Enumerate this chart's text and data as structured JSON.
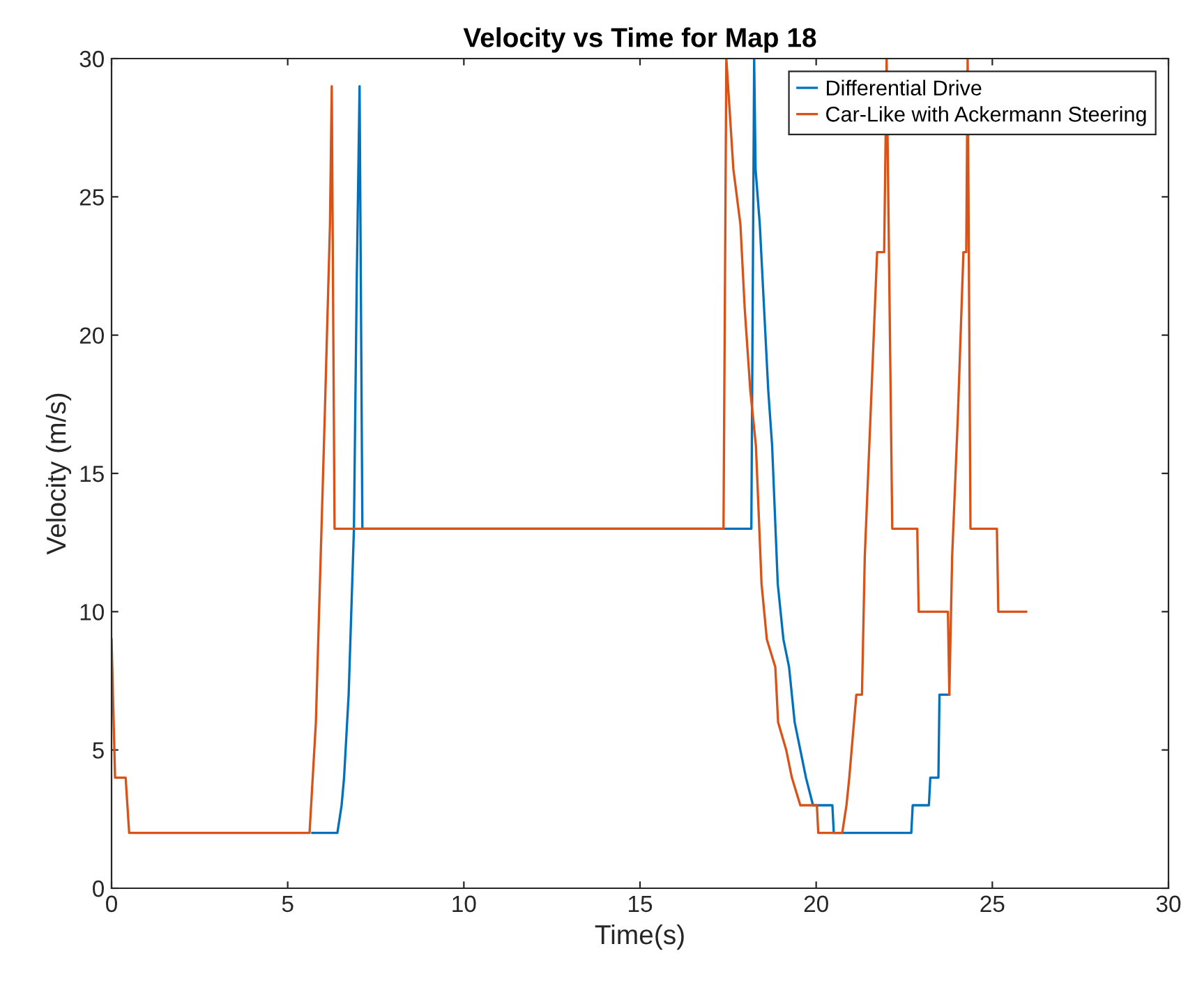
{
  "chart_data": {
    "type": "line",
    "title": "Velocity vs Time for Map 18",
    "xlabel": "Time(s)",
    "ylabel": "Velocity (m/s)",
    "xlim": [
      0,
      30
    ],
    "ylim": [
      0,
      30
    ],
    "xticks": [
      0,
      5,
      10,
      15,
      20,
      25,
      30
    ],
    "yticks": [
      0,
      5,
      10,
      15,
      20,
      25,
      30
    ],
    "grid": false,
    "legend": "top right",
    "marker": "none",
    "line_style": "solid",
    "series": [
      {
        "name": "Differential Drive",
        "color": "#0072bd",
        "x": [
          5.7,
          6.41,
          6.53,
          6.6,
          6.73,
          6.88,
          6.96,
          7.04,
          7.12,
          18.16,
          18.24,
          18.28,
          18.4,
          18.52,
          18.64,
          18.75,
          18.91,
          19.07,
          19.23,
          19.39,
          19.55,
          19.71,
          19.91,
          20.46,
          20.5,
          22.7,
          22.74,
          23.2,
          23.24,
          23.47,
          23.5,
          23.78
        ],
        "values": [
          2,
          2,
          3,
          4,
          7,
          13,
          22,
          29,
          13,
          13,
          30,
          26,
          24,
          21,
          18,
          16,
          11,
          9,
          8,
          6,
          5,
          4,
          3,
          3,
          2,
          2,
          3,
          3,
          4,
          4,
          7,
          7
        ]
      },
      {
        "name": "Car-Like with Ackermann Steering",
        "color": "#d95319",
        "x": [
          0,
          0.1,
          0.4,
          0.5,
          5.62,
          5.8,
          6.05,
          6.2,
          6.25,
          6.33,
          17.37,
          17.45,
          17.65,
          17.85,
          17.97,
          18.13,
          18.29,
          18.45,
          18.6,
          18.84,
          18.92,
          19.15,
          19.31,
          19.55,
          20.02,
          20.06,
          20.74,
          20.86,
          20.94,
          21.14,
          21.3,
          21.38,
          21.54,
          21.73,
          21.93,
          22.0,
          22.16,
          22.87,
          22.91,
          23.74,
          23.78,
          23.86,
          24.02,
          24.18,
          24.26,
          24.3,
          24.38,
          25.13,
          25.17,
          25.96
        ],
        "values": [
          9,
          4,
          4,
          2,
          2,
          6,
          17,
          24,
          29,
          13,
          13,
          30,
          26,
          24,
          21,
          18,
          16,
          11,
          9,
          8,
          6,
          5,
          4,
          3,
          3,
          2,
          2,
          3,
          4,
          7,
          7,
          12,
          17,
          23,
          23,
          30,
          13,
          13,
          10,
          10,
          7,
          12,
          17,
          23,
          23,
          30,
          13,
          13,
          10,
          10
        ]
      }
    ]
  }
}
